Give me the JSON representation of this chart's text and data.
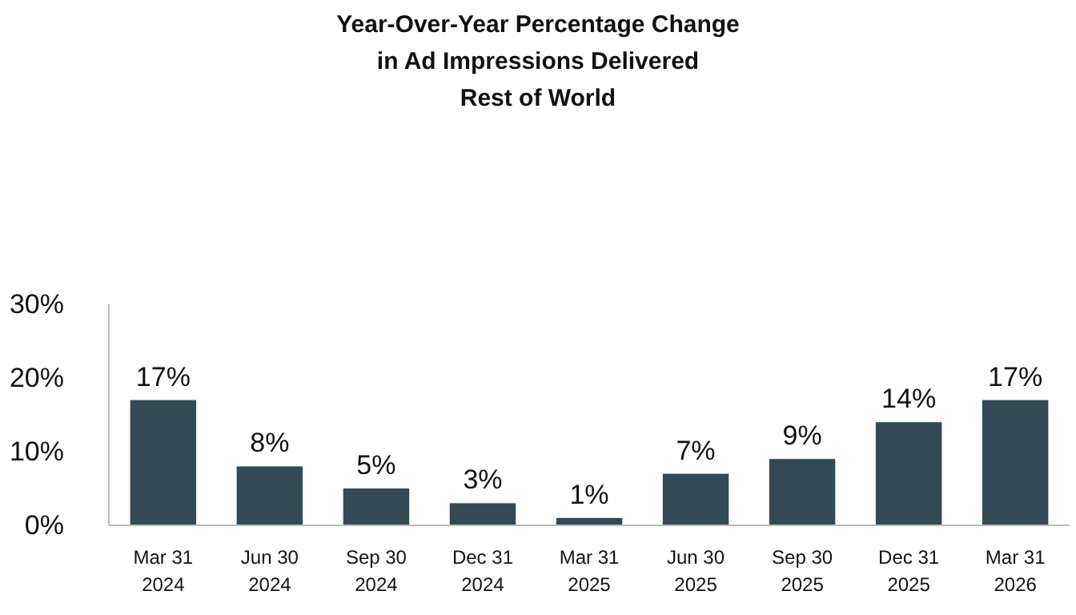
{
  "chart_data": {
    "type": "bar",
    "title": "Year-Over-Year Percentage Change\nin Ad Impressions Delivered\nRest of World",
    "categories": [
      "Mar 31\n2024",
      "Jun 30\n2024",
      "Sep 30\n2024",
      "Dec 31\n2024",
      "Mar 31\n2025",
      "Jun 30\n2025",
      "Sep 30\n2025",
      "Dec 31\n2025",
      "Mar 31\n2026"
    ],
    "values": [
      17,
      8,
      5,
      3,
      1,
      7,
      9,
      14,
      17
    ],
    "value_labels": [
      "17%",
      "8%",
      "5%",
      "3%",
      "1%",
      "7%",
      "9%",
      "14%",
      "17%"
    ],
    "color": "#334a55",
    "ylim": [
      0,
      30
    ],
    "yticks": [
      {
        "value": 0,
        "label": "0%"
      },
      {
        "value": 10,
        "label": "10%"
      },
      {
        "value": 20,
        "label": "20%"
      },
      {
        "value": 30,
        "label": "30%"
      }
    ],
    "grid": false
  }
}
